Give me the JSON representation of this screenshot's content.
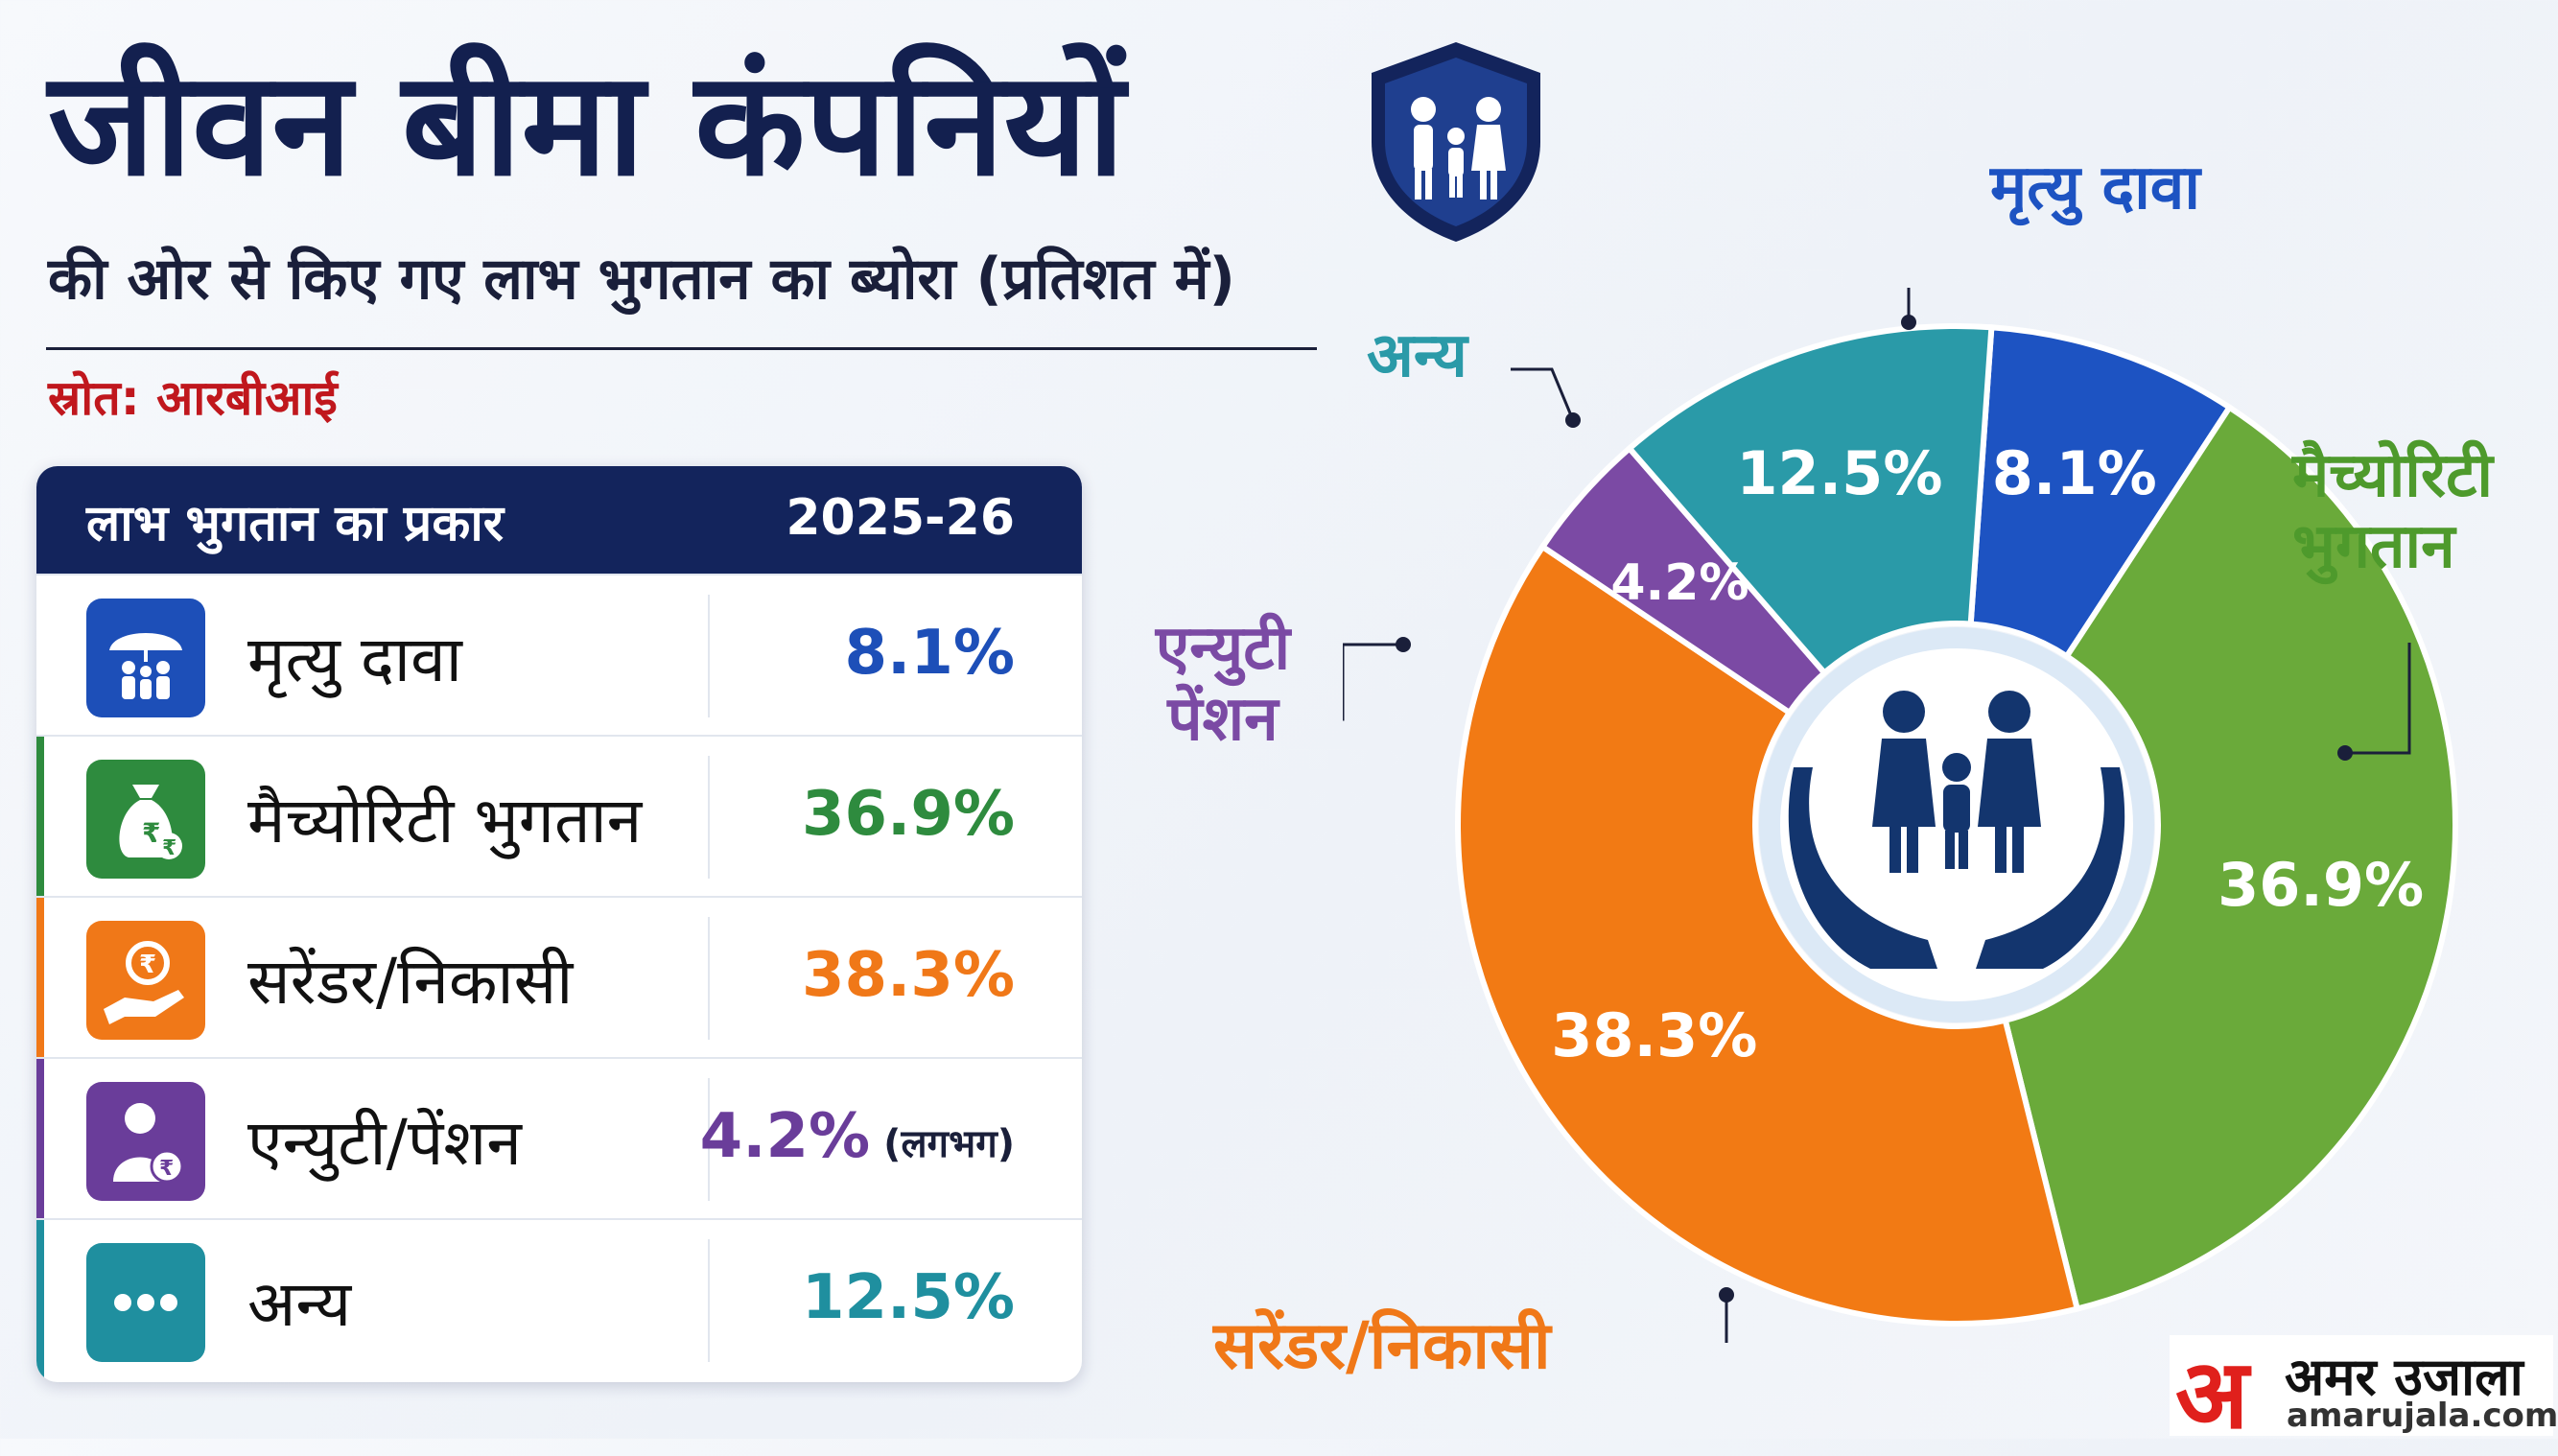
{
  "header": {
    "title": "जीवन बीमा कंपनियों",
    "subtitle": "की ओर से किए गए लाभ भुगतान का ब्योरा (प्रतिशत में)",
    "source": "स्रोत: आरबीआई"
  },
  "table": {
    "col_type": "लाभ भुगतान का प्रकार",
    "col_year": "2025-26",
    "rows": [
      {
        "label": "मृत्यु दावा",
        "value": "8.1%",
        "note": "",
        "color": "#1d4fb8",
        "icon": "umbrella-family-icon"
      },
      {
        "label": "मैच्योरिटी भुगतान",
        "value": "36.9%",
        "note": "",
        "color": "#2e8b3e",
        "icon": "money-bag-icon"
      },
      {
        "label": "सरेंडर/निकासी",
        "value": "38.3%",
        "note": "",
        "color": "#f07818",
        "icon": "hand-rupee-icon"
      },
      {
        "label": "एन्युटी/पेंशन",
        "value": "4.2%",
        "note": "(लगभग)",
        "color": "#6a3d9a",
        "icon": "person-rupee-icon"
      },
      {
        "label": "अन्य",
        "value": "12.5%",
        "note": "",
        "color": "#1f8f9f",
        "icon": "more-dots-icon"
      }
    ]
  },
  "chart_data": {
    "type": "pie",
    "donut": true,
    "title": "",
    "slices": [
      {
        "label": "मृत्यु दावा",
        "value": 8.1,
        "display": "8.1%",
        "color": "#1d53c2"
      },
      {
        "label": "मैच्योरिटी भुगतान",
        "value": 36.9,
        "display": "36.9%",
        "color": "#6aaa3a"
      },
      {
        "label": "सरेंडर/निकासी",
        "value": 38.3,
        "display": "38.3%",
        "color": "#f27a14"
      },
      {
        "label": "एन्युटी पेंशन",
        "value": 4.2,
        "display": "4.2%",
        "color": "#7b4aa4"
      },
      {
        "label": "अन्य",
        "value": 12.5,
        "display": "12.5%",
        "color": "#2a9aa8"
      }
    ],
    "center_icon": "family-hands-icon"
  },
  "brand": {
    "mark": "अ",
    "name": "अमर उजाला",
    "url": "amarujala.com"
  }
}
